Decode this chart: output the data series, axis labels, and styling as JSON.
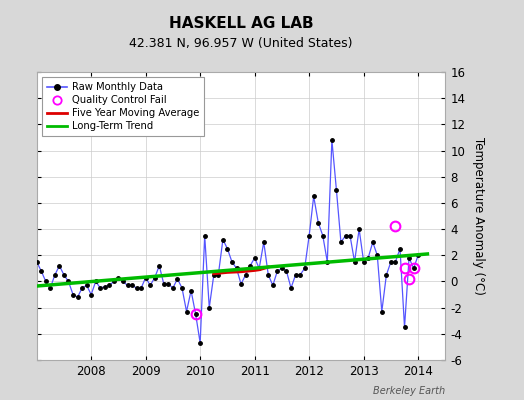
{
  "title": "HASKELL AG LAB",
  "subtitle": "42.381 N, 96.957 W (United States)",
  "ylabel": "Temperature Anomaly (°C)",
  "watermark": "Berkeley Earth",
  "ylim": [
    -6,
    16
  ],
  "yticks": [
    -6,
    -4,
    -2,
    0,
    2,
    4,
    6,
    8,
    10,
    12,
    14,
    16
  ],
  "xlim_start": 2007.0,
  "xlim_end": 2014.5,
  "bg_color": "#d8d8d8",
  "plot_bg_color": "#ffffff",
  "raw_x": [
    2007.0,
    2007.083,
    2007.167,
    2007.25,
    2007.333,
    2007.417,
    2007.5,
    2007.583,
    2007.667,
    2007.75,
    2007.833,
    2007.917,
    2008.0,
    2008.083,
    2008.167,
    2008.25,
    2008.333,
    2008.417,
    2008.5,
    2008.583,
    2008.667,
    2008.75,
    2008.833,
    2008.917,
    2009.0,
    2009.083,
    2009.167,
    2009.25,
    2009.333,
    2009.417,
    2009.5,
    2009.583,
    2009.667,
    2009.75,
    2009.833,
    2009.917,
    2010.0,
    2010.083,
    2010.167,
    2010.25,
    2010.333,
    2010.417,
    2010.5,
    2010.583,
    2010.667,
    2010.75,
    2010.833,
    2010.917,
    2011.0,
    2011.083,
    2011.167,
    2011.25,
    2011.333,
    2011.417,
    2011.5,
    2011.583,
    2011.667,
    2011.75,
    2011.833,
    2011.917,
    2012.0,
    2012.083,
    2012.167,
    2012.25,
    2012.333,
    2012.417,
    2012.5,
    2012.583,
    2012.667,
    2012.75,
    2012.833,
    2012.917,
    2013.0,
    2013.083,
    2013.167,
    2013.25,
    2013.333,
    2013.417,
    2013.5,
    2013.583,
    2013.667,
    2013.75,
    2013.833,
    2013.917,
    2014.0
  ],
  "raw_y": [
    1.5,
    0.8,
    0.0,
    -0.5,
    0.5,
    1.2,
    0.5,
    0.0,
    -1.0,
    -1.2,
    -0.5,
    -0.3,
    -1.0,
    0.0,
    -0.5,
    -0.4,
    -0.3,
    0.0,
    0.3,
    0.0,
    -0.3,
    -0.3,
    -0.5,
    -0.5,
    0.3,
    -0.3,
    0.3,
    1.2,
    -0.2,
    -0.2,
    -0.5,
    0.2,
    -0.5,
    -2.3,
    -0.7,
    -2.5,
    -4.7,
    3.5,
    -2.0,
    0.5,
    0.5,
    3.2,
    2.5,
    1.5,
    1.0,
    -0.2,
    0.5,
    1.2,
    1.8,
    1.0,
    3.0,
    0.5,
    -0.3,
    0.8,
    1.0,
    0.8,
    -0.5,
    0.5,
    0.5,
    1.0,
    3.5,
    6.5,
    4.5,
    3.5,
    1.5,
    10.8,
    7.0,
    3.0,
    3.5,
    3.5,
    1.5,
    4.0,
    1.5,
    1.8,
    3.0,
    2.0,
    -2.3,
    0.5,
    1.5,
    1.5,
    2.5,
    -3.5,
    1.8,
    1.0,
    2.0
  ],
  "qc_fail_x": [
    2009.917,
    2013.583,
    2013.75,
    2013.833,
    2013.917
  ],
  "qc_fail_y": [
    -2.5,
    4.2,
    1.0,
    0.2,
    1.0
  ],
  "moving_avg_x": [
    2010.25,
    2010.5,
    2010.75,
    2011.0,
    2011.083,
    2011.25
  ],
  "moving_avg_y": [
    0.6,
    0.7,
    0.75,
    0.85,
    0.9,
    1.1
  ],
  "trend_x": [
    2007.0,
    2014.17
  ],
  "trend_y": [
    -0.35,
    2.1
  ],
  "raw_color": "#5555ff",
  "raw_marker_color": "#000000",
  "qc_color": "#ff00ff",
  "moving_avg_color": "#dd0000",
  "trend_color": "#00bb00",
  "grid_color": "#cccccc"
}
